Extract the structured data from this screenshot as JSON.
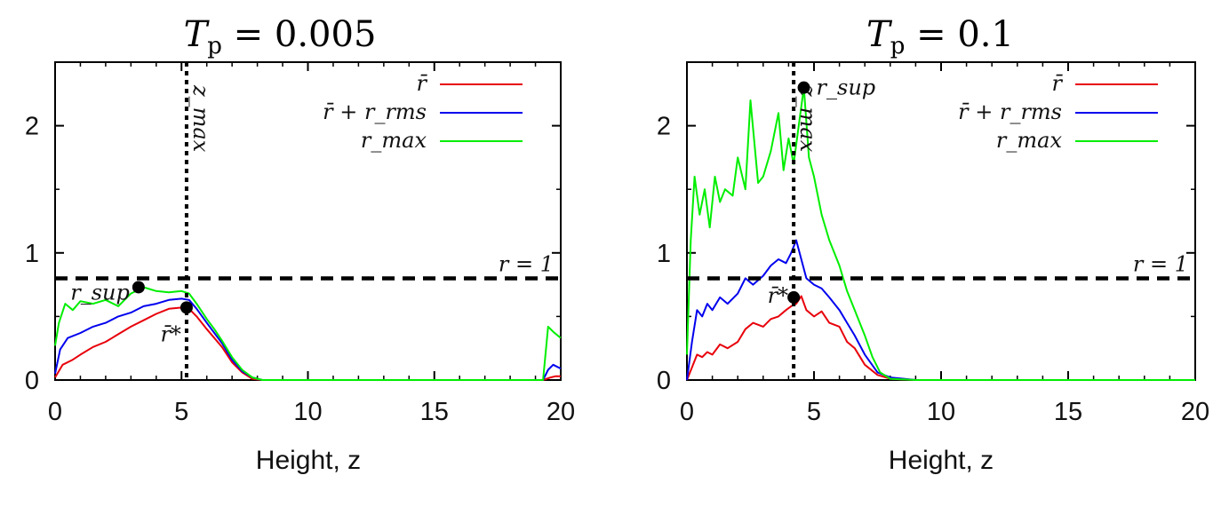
{
  "chart_data": [
    {
      "type": "line",
      "title": "T_p = 0.005",
      "title_main": "T",
      "title_sub": "p",
      "title_rest": " = 0.005",
      "xlabel": "Height, z",
      "ylabel": "",
      "xlim": [
        0,
        20
      ],
      "ylim": [
        0,
        2.5
      ],
      "xticks": [
        "0",
        "5",
        "10",
        "15",
        "20"
      ],
      "yticks": [
        "0",
        "1",
        "2"
      ],
      "hline": {
        "y": 0.8,
        "label": "r = 1"
      },
      "vline": {
        "x": 5.2,
        "label": "z_max"
      },
      "points": [
        {
          "label": "r_sup",
          "x": 3.3,
          "y": 0.73
        },
        {
          "label": "r̄*",
          "x": 5.2,
          "y": 0.57
        }
      ],
      "series": [
        {
          "name": "r̄",
          "color": "#e8000b",
          "x": [
            0,
            0.3,
            0.7,
            1,
            1.5,
            2,
            2.5,
            3,
            3.5,
            4,
            4.5,
            5,
            5.3,
            5.6,
            6,
            6.3,
            6.6,
            7,
            7.4,
            7.8,
            8.2,
            9,
            12,
            15,
            19.3,
            19.6,
            19.8,
            20
          ],
          "values": [
            0.02,
            0.12,
            0.16,
            0.2,
            0.26,
            0.3,
            0.36,
            0.42,
            0.47,
            0.52,
            0.56,
            0.57,
            0.56,
            0.5,
            0.4,
            0.33,
            0.26,
            0.14,
            0.06,
            0.01,
            0,
            0,
            0,
            0,
            0,
            0.02,
            0.03,
            0.03
          ]
        },
        {
          "name": "r̄ + r_rms",
          "color": "#0000ee",
          "x": [
            0,
            0.2,
            0.5,
            1,
            1.5,
            2,
            2.5,
            3,
            3.5,
            4,
            4.5,
            5,
            5.3,
            5.6,
            6,
            6.3,
            6.6,
            7,
            7.4,
            7.8,
            8.2,
            9,
            12,
            15,
            19.3,
            19.5,
            19.7,
            20
          ],
          "values": [
            0.05,
            0.24,
            0.33,
            0.37,
            0.42,
            0.45,
            0.5,
            0.53,
            0.58,
            0.6,
            0.63,
            0.64,
            0.63,
            0.56,
            0.45,
            0.37,
            0.29,
            0.16,
            0.07,
            0.02,
            0,
            0,
            0,
            0,
            0,
            0.08,
            0.12,
            0.09
          ]
        },
        {
          "name": "r_max",
          "color": "#00ee00",
          "x": [
            0,
            0.15,
            0.4,
            0.7,
            1,
            1.5,
            2,
            2.5,
            3,
            3.5,
            4,
            4.5,
            5,
            5.3,
            5.6,
            6,
            6.3,
            6.6,
            7,
            7.4,
            7.8,
            8.2,
            9,
            12,
            15,
            19.3,
            19.5,
            19.7,
            20
          ],
          "values": [
            0.27,
            0.45,
            0.6,
            0.55,
            0.62,
            0.6,
            0.63,
            0.58,
            0.68,
            0.73,
            0.7,
            0.69,
            0.7,
            0.68,
            0.6,
            0.48,
            0.4,
            0.31,
            0.18,
            0.08,
            0.02,
            0,
            0,
            0,
            0,
            0,
            0.42,
            0.38,
            0.33
          ]
        }
      ]
    },
    {
      "type": "line",
      "title": "T_p = 0.1",
      "title_main": "T",
      "title_sub": "p",
      "title_rest": " = 0.1",
      "xlabel": "Height, z",
      "ylabel": "",
      "xlim": [
        0,
        20
      ],
      "ylim": [
        0,
        2.5
      ],
      "xticks": [
        "0",
        "5",
        "10",
        "15",
        "20"
      ],
      "yticks": [
        "0",
        "1",
        "2"
      ],
      "hline": {
        "y": 0.8,
        "label": "r = 1"
      },
      "vline": {
        "x": 4.2,
        "label": "z_max"
      },
      "points": [
        {
          "label": "r_sup",
          "x": 4.6,
          "y": 2.3
        },
        {
          "label": "r̄*",
          "x": 4.2,
          "y": 0.65
        }
      ],
      "series": [
        {
          "name": "r̄",
          "color": "#e8000b",
          "x": [
            0,
            0.2,
            0.4,
            0.6,
            0.8,
            1,
            1.3,
            1.6,
            2,
            2.3,
            2.6,
            3,
            3.3,
            3.6,
            3.9,
            4.1,
            4.3,
            4.5,
            4.7,
            5,
            5.3,
            5.6,
            6,
            6.3,
            6.6,
            7,
            7.5,
            8,
            9,
            12,
            15,
            20
          ],
          "values": [
            0,
            0.1,
            0.2,
            0.18,
            0.22,
            0.2,
            0.28,
            0.25,
            0.3,
            0.4,
            0.45,
            0.42,
            0.48,
            0.5,
            0.55,
            0.58,
            0.6,
            0.66,
            0.55,
            0.5,
            0.54,
            0.45,
            0.42,
            0.3,
            0.25,
            0.12,
            0.04,
            0.01,
            0,
            0,
            0,
            0
          ]
        },
        {
          "name": "r̄ + r_rms",
          "color": "#0000ee",
          "x": [
            0,
            0.2,
            0.4,
            0.6,
            0.8,
            1,
            1.3,
            1.6,
            2,
            2.3,
            2.6,
            3,
            3.3,
            3.6,
            3.9,
            4.1,
            4.3,
            4.5,
            4.7,
            5,
            5.3,
            5.6,
            6,
            6.3,
            6.6,
            7,
            7.5,
            8,
            9,
            12,
            15,
            20
          ],
          "values": [
            0,
            0.3,
            0.55,
            0.5,
            0.6,
            0.55,
            0.65,
            0.6,
            0.68,
            0.8,
            0.75,
            0.82,
            0.9,
            0.95,
            0.92,
            1.0,
            1.1,
            0.95,
            0.8,
            0.75,
            0.72,
            0.65,
            0.55,
            0.45,
            0.35,
            0.2,
            0.06,
            0.02,
            0,
            0,
            0,
            0
          ]
        },
        {
          "name": "r_max",
          "color": "#00ee00",
          "x": [
            0,
            0.15,
            0.3,
            0.5,
            0.7,
            0.9,
            1.1,
            1.3,
            1.5,
            1.8,
            2,
            2.3,
            2.5,
            2.8,
            3,
            3.3,
            3.6,
            3.8,
            4,
            4.2,
            4.4,
            4.6,
            4.8,
            5,
            5.3,
            5.6,
            6,
            6.3,
            6.6,
            7,
            7.3,
            7.6,
            8,
            9,
            12,
            15,
            20
          ],
          "values": [
            0.2,
            1.1,
            1.6,
            1.3,
            1.5,
            1.2,
            1.6,
            1.4,
            1.5,
            1.45,
            1.75,
            1.5,
            2.2,
            1.55,
            1.6,
            1.8,
            2.1,
            1.65,
            1.9,
            1.7,
            2.0,
            2.3,
            1.75,
            1.6,
            1.3,
            1.1,
            0.9,
            0.7,
            0.55,
            0.35,
            0.18,
            0.06,
            0.01,
            0,
            0,
            0,
            0
          ]
        }
      ]
    }
  ]
}
